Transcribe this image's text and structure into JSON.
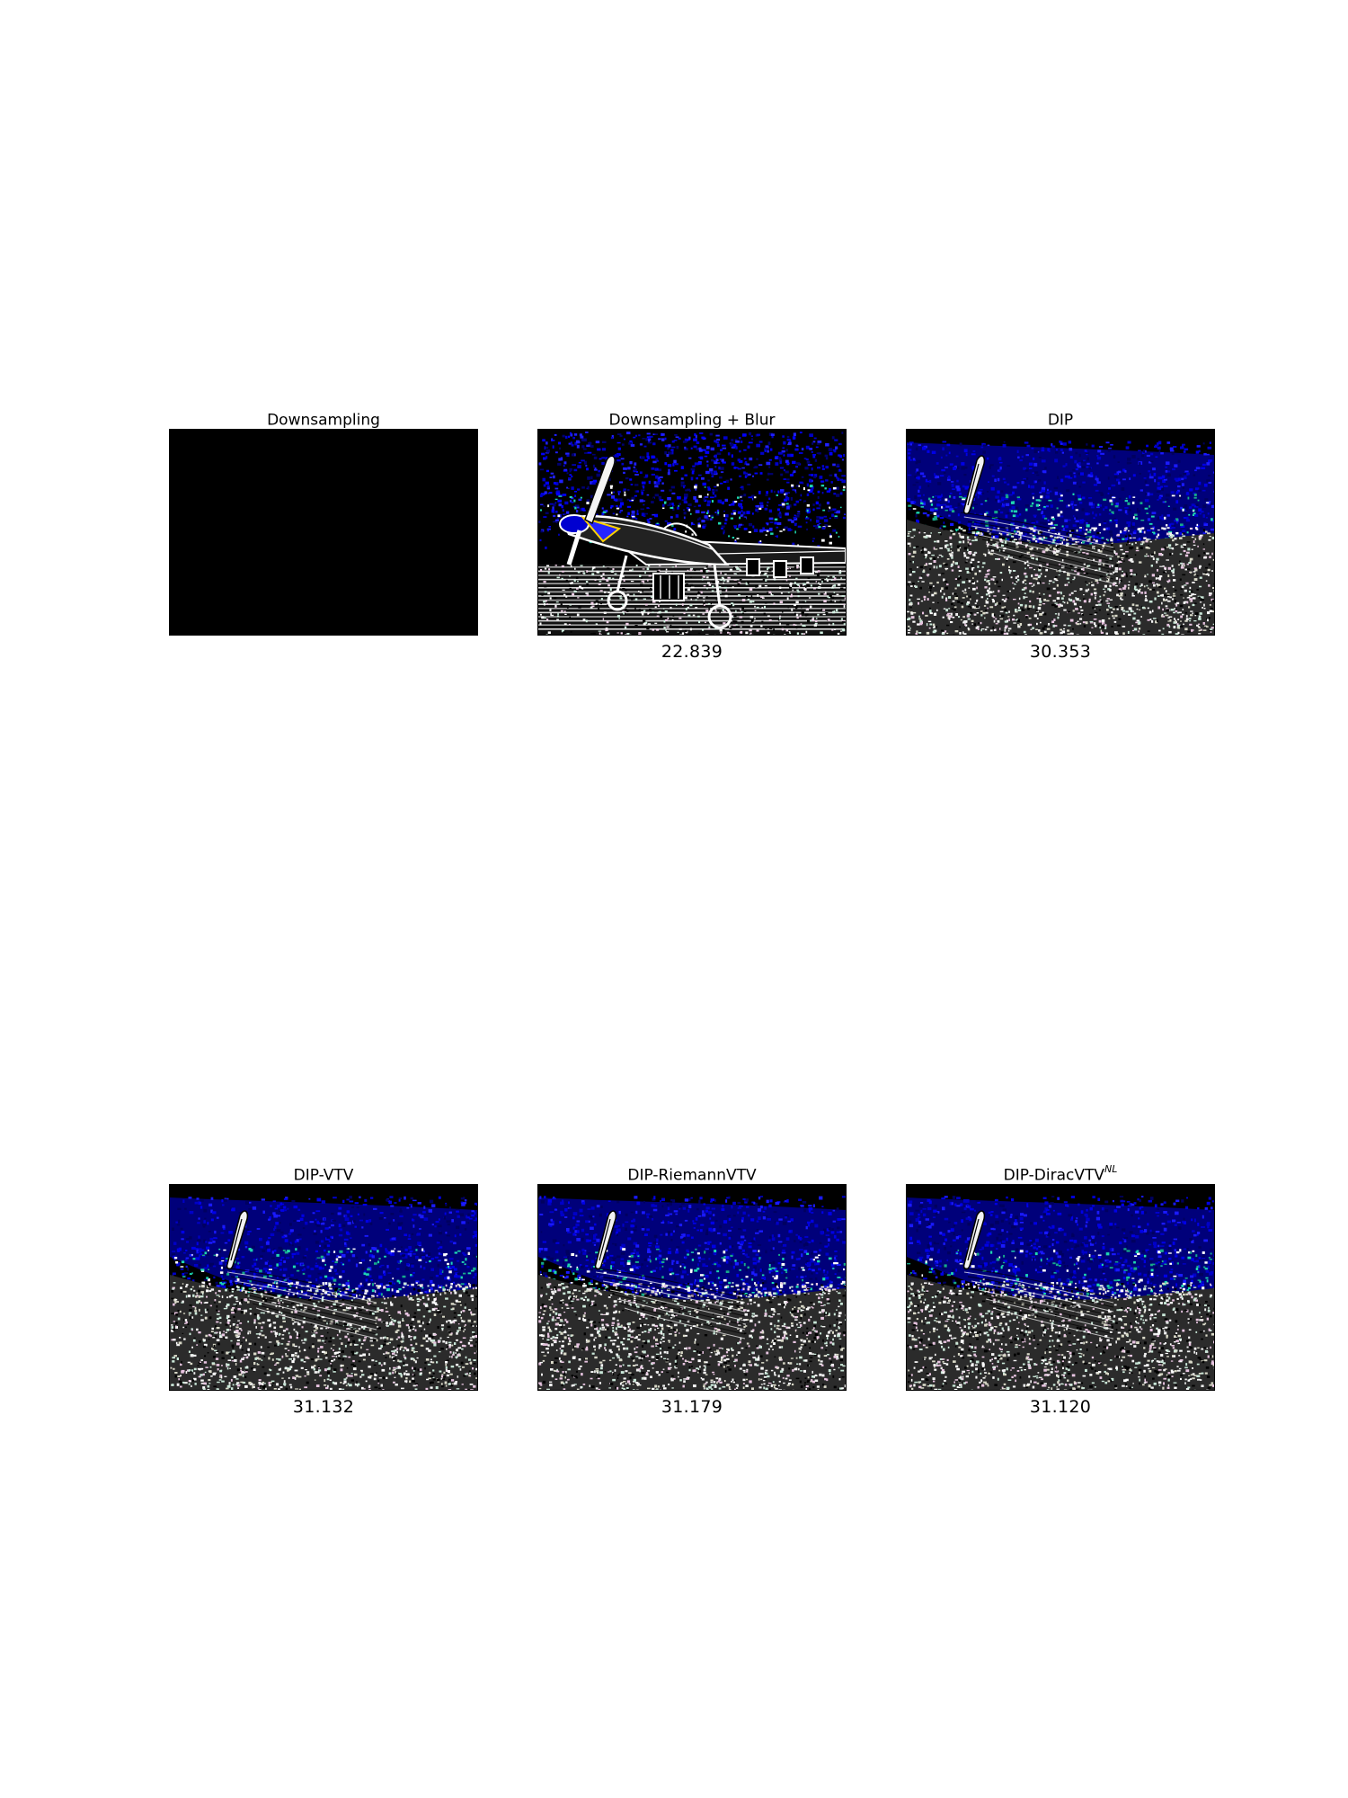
{
  "figure": {
    "panels": [
      {
        "id": "downsampling",
        "title": "Downsampling",
        "title_sup": "",
        "score": "",
        "image": "black"
      },
      {
        "id": "downsampling-blur",
        "title": "Downsampling + Blur",
        "title_sup": "",
        "score": "22.839",
        "image": "airplane-edges"
      },
      {
        "id": "dip",
        "title": "DIP",
        "title_sup": "",
        "score": "30.353",
        "image": "noisy-edges"
      },
      {
        "id": "dip-vtv",
        "title": "DIP-VTV",
        "title_sup": "",
        "score": "31.132",
        "image": "noisy-edges"
      },
      {
        "id": "dip-riemannvtv",
        "title": "DIP-RiemannVTV",
        "title_sup": "",
        "score": "31.179",
        "image": "noisy-edges"
      },
      {
        "id": "dip-diracvtv-nl",
        "title": "DIP-DiracVTV",
        "title_sup": "NL",
        "score": "31.120",
        "image": "noisy-edges"
      }
    ]
  },
  "colors": {
    "background": "#ffffff",
    "sky_dark": "#000000",
    "sky_blue": "#0000c8",
    "band_teal": "#1fd7b0",
    "ground_speckle": "#ffffff"
  }
}
